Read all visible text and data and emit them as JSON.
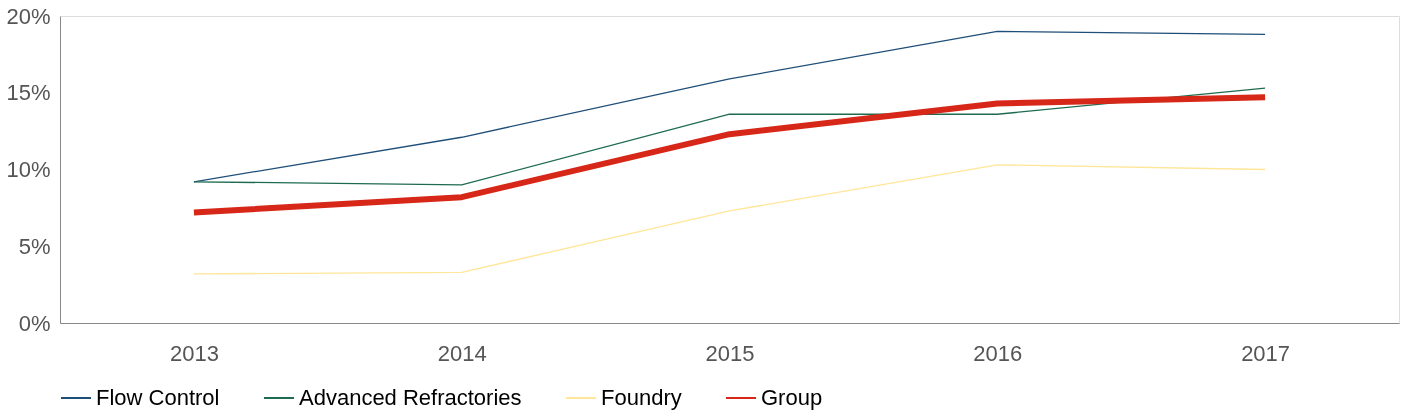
{
  "chart_data": {
    "type": "line",
    "categories": [
      "2013",
      "2014",
      "2015",
      "2016",
      "2017"
    ],
    "series": [
      {
        "name": "Flow Control",
        "color": "#1f4e79",
        "values": [
          9.2,
          12.1,
          15.9,
          19.0,
          18.8
        ]
      },
      {
        "name": "Advanced Refractories",
        "color": "#1e6b4f",
        "values": [
          9.2,
          9.0,
          13.6,
          13.6,
          15.3
        ]
      },
      {
        "name": "Foundry",
        "color": "#ffe699",
        "values": [
          3.2,
          3.3,
          7.3,
          10.3,
          10.0
        ]
      },
      {
        "name": "Group",
        "color": "#d62718",
        "values": [
          7.2,
          8.2,
          12.3,
          14.3,
          14.7
        ]
      }
    ],
    "ylim": [
      0,
      20
    ],
    "yticks": [
      {
        "value": 0,
        "label": "0%"
      },
      {
        "value": 5,
        "label": "5%"
      },
      {
        "value": 10,
        "label": "10%"
      },
      {
        "value": 15,
        "label": "15%"
      },
      {
        "value": 20,
        "label": "20%"
      }
    ],
    "grid": false,
    "legend": "bottom",
    "marker": "none",
    "line_style": "solid"
  }
}
